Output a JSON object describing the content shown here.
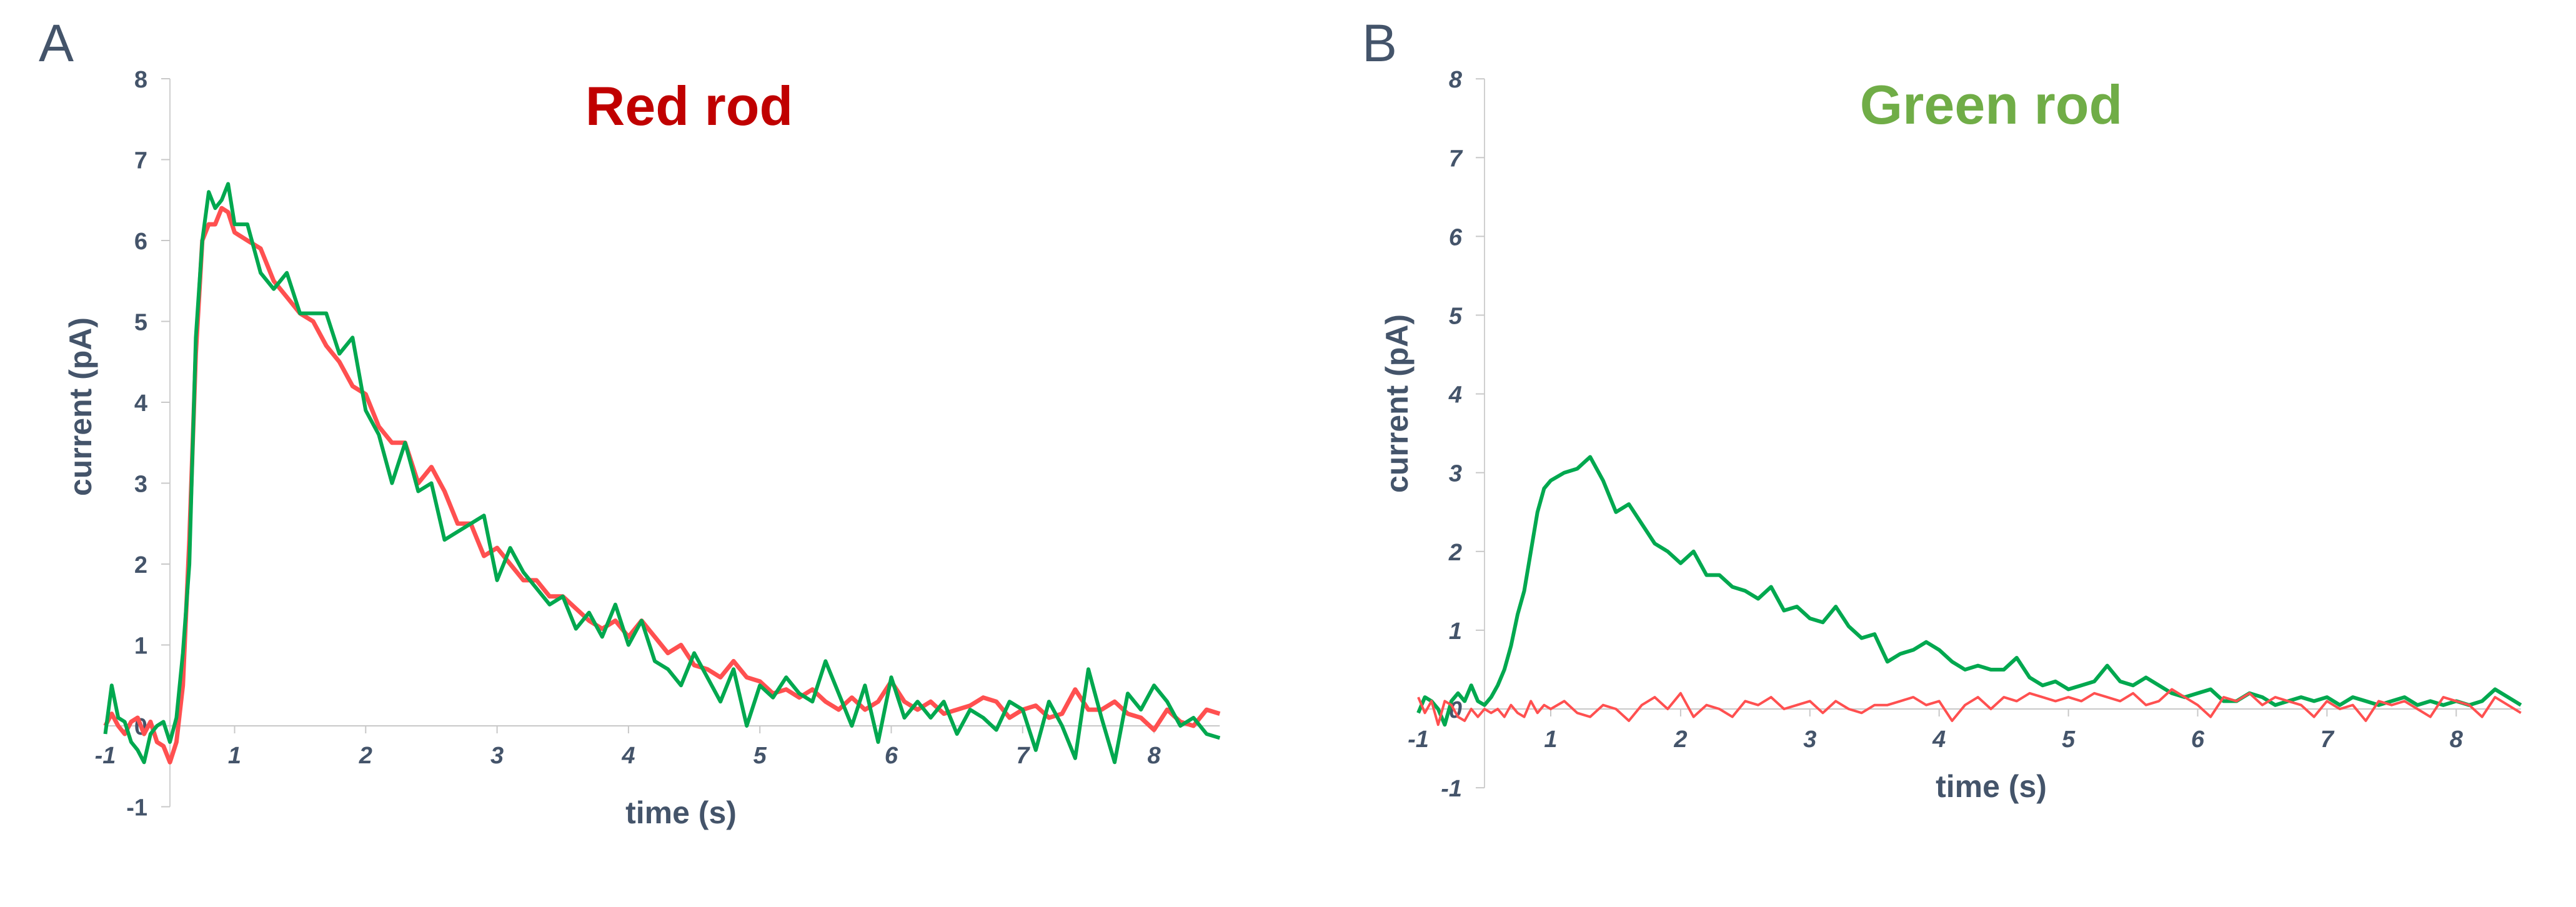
{
  "chart_data": [
    {
      "type": "line",
      "panel_label": "A",
      "title": "Red rod",
      "title_color": "#C00000",
      "xlabel": "time (s)",
      "ylabel": "current (pA)",
      "x_tick_labels": [
        "-1",
        "1",
        "2",
        "3",
        "4",
        "5",
        "6",
        "7",
        "8"
      ],
      "y_tick_labels": [
        "-1",
        "0",
        "1",
        "2",
        "3",
        "4",
        "5",
        "6",
        "7",
        "8"
      ],
      "xlim": [
        -1,
        8.5
      ],
      "ylim": [
        -1,
        8
      ],
      "grid": false,
      "x": [
        -1.0,
        -0.9,
        -0.8,
        -0.7,
        -0.6,
        -0.5,
        -0.4,
        -0.3,
        -0.2,
        -0.1,
        0.0,
        0.1,
        0.2,
        0.3,
        0.4,
        0.5,
        0.6,
        0.7,
        0.8,
        0.9,
        1.0,
        1.1,
        1.2,
        1.3,
        1.4,
        1.5,
        1.6,
        1.7,
        1.8,
        1.9,
        2.0,
        2.1,
        2.2,
        2.3,
        2.4,
        2.5,
        2.6,
        2.7,
        2.8,
        2.9,
        3.0,
        3.1,
        3.2,
        3.3,
        3.4,
        3.5,
        3.6,
        3.7,
        3.8,
        3.9,
        4.0,
        4.1,
        4.2,
        4.3,
        4.4,
        4.5,
        4.6,
        4.7,
        4.8,
        4.9,
        5.0,
        5.1,
        5.2,
        5.3,
        5.4,
        5.5,
        5.6,
        5.7,
        5.8,
        5.9,
        6.0,
        6.1,
        6.2,
        6.3,
        6.4,
        6.5,
        6.6,
        6.7,
        6.8,
        6.9,
        7.0,
        7.1,
        7.2,
        7.3,
        7.4,
        7.5,
        7.6,
        7.7,
        7.8,
        7.9,
        8.0,
        8.1,
        8.2,
        8.3,
        8.4,
        8.5
      ],
      "series": [
        {
          "color": "#FF5050",
          "values": [
            0,
            0.15,
            0.0,
            -0.1,
            0.05,
            0.1,
            -0.1,
            0.05,
            -0.2,
            -0.25,
            -0.45,
            -0.2,
            0.5,
            2.3,
            4.6,
            6.0,
            6.2,
            6.2,
            6.4,
            6.35,
            6.1,
            6.0,
            5.9,
            5.5,
            5.3,
            5.1,
            5.0,
            4.7,
            4.5,
            4.2,
            4.1,
            3.7,
            3.5,
            3.5,
            3.0,
            3.2,
            2.9,
            2.5,
            2.5,
            2.1,
            2.2,
            2.0,
            1.8,
            1.8,
            1.6,
            1.6,
            1.45,
            1.3,
            1.2,
            1.3,
            1.1,
            1.3,
            1.1,
            0.9,
            1.0,
            0.75,
            0.7,
            0.6,
            0.8,
            0.6,
            0.55,
            0.4,
            0.45,
            0.35,
            0.45,
            0.3,
            0.2,
            0.35,
            0.2,
            0.3,
            0.55,
            0.3,
            0.2,
            0.3,
            0.15,
            0.2,
            0.25,
            0.35,
            0.3,
            0.1,
            0.2,
            0.25,
            0.1,
            0.15,
            0.45,
            0.2,
            0.2,
            0.3,
            0.15,
            0.1,
            -0.05,
            0.2,
            0.05,
            0.0,
            0.2,
            0.15
          ]
        },
        {
          "color": "#00A84F",
          "values": [
            -0.1,
            0.5,
            0.1,
            0.05,
            -0.2,
            -0.3,
            -0.45,
            -0.1,
            0.0,
            0.05,
            -0.2,
            0.1,
            0.9,
            2.0,
            4.8,
            6.0,
            6.6,
            6.4,
            6.5,
            6.7,
            6.2,
            6.2,
            5.6,
            5.4,
            5.6,
            5.1,
            5.1,
            5.1,
            4.6,
            4.8,
            3.9,
            3.6,
            3.0,
            3.5,
            2.9,
            3.0,
            2.3,
            2.4,
            2.5,
            2.6,
            1.8,
            2.2,
            1.9,
            1.7,
            1.5,
            1.6,
            1.2,
            1.4,
            1.1,
            1.5,
            1.0,
            1.3,
            0.8,
            0.7,
            0.5,
            0.9,
            0.6,
            0.3,
            0.7,
            0.0,
            0.5,
            0.35,
            0.6,
            0.4,
            0.3,
            0.8,
            0.4,
            0.0,
            0.5,
            -0.2,
            0.6,
            0.1,
            0.3,
            0.1,
            0.3,
            -0.1,
            0.2,
            0.1,
            -0.05,
            0.3,
            0.2,
            -0.3,
            0.3,
            0.0,
            -0.4,
            0.7,
            0.1,
            -0.45,
            0.4,
            0.2,
            0.5,
            0.3,
            0.0,
            0.1,
            -0.1,
            -0.15
          ]
        }
      ]
    },
    {
      "type": "line",
      "panel_label": "B",
      "title": "Green rod",
      "title_color": "#70AD47",
      "xlabel": "time (s)",
      "ylabel": "current (pA)",
      "x_tick_labels": [
        "-1",
        "1",
        "2",
        "3",
        "4",
        "5",
        "6",
        "7",
        "8"
      ],
      "y_tick_labels": [
        "-1",
        "0",
        "1",
        "2",
        "3",
        "4",
        "5",
        "6",
        "7",
        "8"
      ],
      "xlim": [
        -1,
        8.5
      ],
      "ylim": [
        -1,
        8
      ],
      "grid": false,
      "x": [
        -1.0,
        -0.9,
        -0.8,
        -0.7,
        -0.6,
        -0.5,
        -0.4,
        -0.3,
        -0.2,
        -0.1,
        0.0,
        0.1,
        0.2,
        0.3,
        0.4,
        0.5,
        0.6,
        0.7,
        0.8,
        0.9,
        1.0,
        1.1,
        1.2,
        1.3,
        1.4,
        1.5,
        1.6,
        1.7,
        1.8,
        1.9,
        2.0,
        2.1,
        2.2,
        2.3,
        2.4,
        2.5,
        2.6,
        2.7,
        2.8,
        2.9,
        3.0,
        3.1,
        3.2,
        3.3,
        3.4,
        3.5,
        3.6,
        3.7,
        3.8,
        3.9,
        4.0,
        4.1,
        4.2,
        4.3,
        4.4,
        4.5,
        4.6,
        4.7,
        4.8,
        4.9,
        5.0,
        5.1,
        5.2,
        5.3,
        5.4,
        5.5,
        5.6,
        5.7,
        5.8,
        5.9,
        6.0,
        6.1,
        6.2,
        6.3,
        6.4,
        6.5,
        6.6,
        6.7,
        6.8,
        6.9,
        7.0,
        7.1,
        7.2,
        7.3,
        7.4,
        7.5,
        7.6,
        7.7,
        7.8,
        7.9,
        8.0,
        8.1,
        8.2,
        8.3,
        8.4,
        8.5
      ],
      "series": [
        {
          "color": "#00A84F",
          "values": [
            -0.05,
            0.15,
            0.1,
            0.0,
            -0.2,
            0.1,
            0.2,
            0.1,
            0.3,
            0.1,
            0.05,
            0.15,
            0.3,
            0.5,
            0.8,
            1.2,
            1.5,
            2.0,
            2.5,
            2.8,
            2.9,
            3.0,
            3.05,
            3.2,
            2.9,
            2.5,
            2.6,
            2.35,
            2.1,
            2.0,
            1.85,
            2.0,
            1.7,
            1.7,
            1.55,
            1.5,
            1.4,
            1.55,
            1.25,
            1.3,
            1.15,
            1.1,
            1.3,
            1.05,
            0.9,
            0.95,
            0.6,
            0.7,
            0.75,
            0.85,
            0.75,
            0.6,
            0.5,
            0.55,
            0.5,
            0.5,
            0.65,
            0.4,
            0.3,
            0.35,
            0.25,
            0.3,
            0.35,
            0.55,
            0.35,
            0.3,
            0.4,
            0.3,
            0.2,
            0.15,
            0.2,
            0.25,
            0.1,
            0.1,
            0.2,
            0.15,
            0.05,
            0.1,
            0.15,
            0.1,
            0.15,
            0.05,
            0.15,
            0.1,
            0.05,
            0.1,
            0.15,
            0.05,
            0.1,
            0.05,
            0.1,
            0.05,
            0.1,
            0.25,
            0.15,
            0.05
          ]
        },
        {
          "color": "#FF5050",
          "values": [
            0.15,
            -0.05,
            0.1,
            -0.2,
            0.1,
            0.05,
            -0.1,
            -0.15,
            0.0,
            -0.1,
            0.0,
            -0.05,
            0.0,
            -0.1,
            0.05,
            -0.05,
            -0.1,
            0.1,
            -0.05,
            0.05,
            0.0,
            0.1,
            -0.05,
            -0.1,
            0.05,
            0.0,
            -0.15,
            0.05,
            0.15,
            0.0,
            0.2,
            -0.1,
            0.05,
            0.0,
            -0.1,
            0.1,
            0.05,
            0.15,
            0.0,
            0.05,
            0.1,
            -0.05,
            0.1,
            0.0,
            -0.05,
            0.05,
            0.05,
            0.1,
            0.15,
            0.05,
            0.1,
            -0.15,
            0.05,
            0.15,
            0.0,
            0.15,
            0.1,
            0.2,
            0.15,
            0.1,
            0.15,
            0.1,
            0.2,
            0.15,
            0.1,
            0.2,
            0.05,
            0.1,
            0.25,
            0.15,
            0.05,
            -0.1,
            0.15,
            0.1,
            0.2,
            0.05,
            0.15,
            0.1,
            0.05,
            -0.1,
            0.1,
            0.0,
            0.05,
            -0.15,
            0.1,
            0.05,
            0.1,
            0.0,
            -0.1,
            0.15,
            0.1,
            0.05,
            -0.1,
            0.15,
            0.05,
            -0.05
          ]
        }
      ]
    }
  ]
}
